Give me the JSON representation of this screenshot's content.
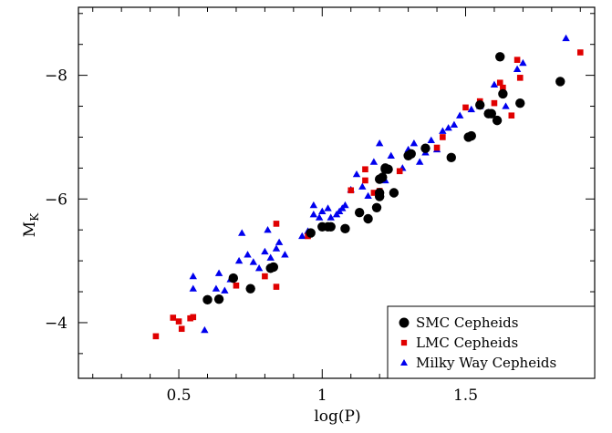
{
  "chart_data": {
    "type": "scatter",
    "xlabel": "log(P)",
    "ylabel_main": "M",
    "ylabel_sub": "K",
    "xlim": [
      0.15,
      1.95
    ],
    "ylim": [
      -3.1,
      -9.1
    ],
    "x_ticks": [
      0.5,
      1,
      1.5
    ],
    "x_tick_labels": [
      "0.5",
      "1",
      "1.5"
    ],
    "y_ticks": [
      -4,
      -6,
      -8
    ],
    "y_tick_labels": [
      "−4",
      "−6",
      "−8"
    ],
    "legend_position": "bottom-right",
    "colors": {
      "smc": "#000000",
      "lmc": "#e00000",
      "mw": "#0000ee"
    },
    "series": [
      {
        "name": "SMC Cepheids",
        "marker": "circle",
        "x": [
          0.6,
          0.64,
          0.69,
          0.75,
          0.82,
          0.83,
          0.96,
          1.0,
          1.02,
          1.03,
          1.08,
          1.13,
          1.16,
          1.19,
          1.2,
          1.2,
          1.2,
          1.21,
          1.22,
          1.22,
          1.23,
          1.25,
          1.3,
          1.31,
          1.36,
          1.45,
          1.51,
          1.52,
          1.55,
          1.58,
          1.59,
          1.61,
          1.62,
          1.63,
          1.69,
          1.83
        ],
        "y": [
          -4.37,
          -4.38,
          -4.72,
          -4.55,
          -4.88,
          -4.9,
          -5.45,
          -5.55,
          -5.55,
          -5.55,
          -5.52,
          -5.78,
          -5.68,
          -5.86,
          -6.04,
          -6.1,
          -6.32,
          -6.35,
          -6.48,
          -6.5,
          -6.48,
          -6.1,
          -6.7,
          -6.73,
          -6.82,
          -6.67,
          -7.0,
          -7.02,
          -7.52,
          -7.38,
          -7.38,
          -7.27,
          -8.3,
          -7.7,
          -7.55,
          -7.9
        ]
      },
      {
        "name": "LMC Cepheids",
        "marker": "square",
        "x": [
          0.42,
          0.48,
          0.5,
          0.51,
          0.54,
          0.55,
          0.7,
          0.8,
          0.84,
          0.84,
          0.95,
          1.0,
          1.1,
          1.15,
          1.15,
          1.18,
          1.2,
          1.27,
          1.4,
          1.42,
          1.5,
          1.55,
          1.6,
          1.62,
          1.63,
          1.66,
          1.68,
          1.69,
          1.9
        ],
        "y": [
          -3.78,
          -4.08,
          -4.02,
          -3.9,
          -4.07,
          -4.09,
          -4.6,
          -4.75,
          -5.6,
          -4.58,
          -5.4,
          -5.55,
          -6.14,
          -6.3,
          -6.48,
          -6.1,
          -6.13,
          -6.45,
          -6.83,
          -7.0,
          -7.48,
          -7.58,
          -7.55,
          -7.88,
          -7.8,
          -7.35,
          -8.25,
          -7.96,
          -8.37
        ]
      },
      {
        "name": "Milky Way Cepheids",
        "marker": "triangle",
        "x": [
          0.55,
          0.55,
          0.59,
          0.63,
          0.64,
          0.66,
          0.68,
          0.71,
          0.72,
          0.74,
          0.76,
          0.78,
          0.8,
          0.81,
          0.82,
          0.84,
          0.85,
          0.87,
          0.93,
          0.95,
          0.97,
          0.97,
          0.99,
          1.0,
          1.02,
          1.03,
          1.05,
          1.06,
          1.07,
          1.08,
          1.1,
          1.12,
          1.14,
          1.16,
          1.18,
          1.2,
          1.22,
          1.24,
          1.28,
          1.3,
          1.32,
          1.34,
          1.36,
          1.38,
          1.4,
          1.42,
          1.44,
          1.46,
          1.48,
          1.52,
          1.55,
          1.58,
          1.6,
          1.64,
          1.68,
          1.7,
          1.85
        ],
        "y": [
          -4.75,
          -4.55,
          -3.88,
          -4.55,
          -4.8,
          -4.52,
          -4.7,
          -5.0,
          -5.45,
          -5.1,
          -4.98,
          -4.88,
          -5.15,
          -5.5,
          -5.05,
          -5.2,
          -5.3,
          -5.1,
          -5.4,
          -5.48,
          -5.9,
          -5.75,
          -5.7,
          -5.8,
          -5.85,
          -5.7,
          -5.75,
          -5.8,
          -5.85,
          -5.9,
          -6.15,
          -6.4,
          -6.2,
          -6.05,
          -6.6,
          -6.9,
          -6.3,
          -6.7,
          -6.5,
          -6.8,
          -6.9,
          -6.6,
          -6.75,
          -6.95,
          -6.8,
          -7.1,
          -7.15,
          -7.2,
          -7.35,
          -7.45,
          -7.5,
          -7.4,
          -7.85,
          -7.5,
          -8.1,
          -8.2,
          -8.6
        ]
      }
    ]
  }
}
